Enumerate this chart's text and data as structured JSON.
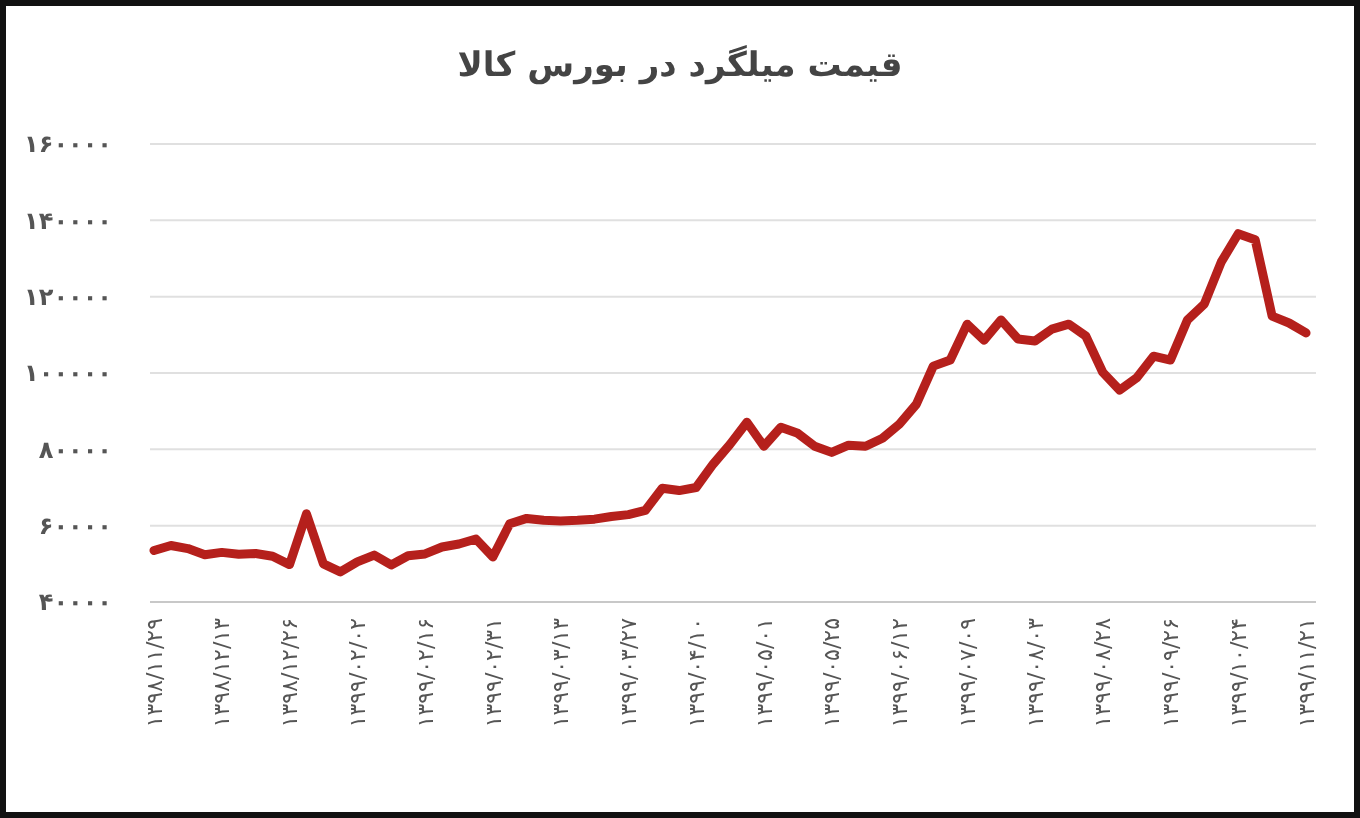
{
  "chart_data": {
    "type": "line",
    "title": "قیمت میلگرد در بورس کالا",
    "categories": [
      "۱۳۹۸/۱۱/۲۹",
      null,
      null,
      null,
      "۱۳۹۸/۱۲/۱۳",
      null,
      null,
      null,
      "۱۳۹۸/۱۲/۲۶",
      null,
      null,
      null,
      "۱۳۹۹/۰۲/۰۲",
      null,
      null,
      null,
      "۱۳۹۹/۰۲/۱۶",
      null,
      null,
      null,
      "۱۳۹۹/۰۲/۳۱",
      null,
      null,
      null,
      "۱۳۹۹/۰۳/۱۳",
      null,
      null,
      null,
      "۱۳۹۹/۰۳/۲۷",
      null,
      null,
      null,
      "۱۳۹۹/۰۴/۱۰",
      null,
      null,
      null,
      "۱۳۹۹/۰۵/۰۱",
      null,
      null,
      null,
      "۱۳۹۹/۰۵/۲۵",
      null,
      null,
      null,
      "۱۳۹۹/۰۶/۱۲",
      null,
      null,
      null,
      "۱۳۹۹/۰۷/۰۹",
      null,
      null,
      null,
      "۱۳۹۹/۰۸/۰۳",
      null,
      null,
      null,
      "۱۳۹۹/۰۸/۲۸",
      null,
      null,
      null,
      "۱۳۹۹/۰۹/۲۶",
      null,
      null,
      null,
      "۱۳۹۹/۱۰/۲۴",
      null,
      null,
      null,
      "۱۳۹۹/۱۱/۲۱"
    ],
    "values": [
      53500,
      54800,
      54000,
      52400,
      53000,
      52500,
      52700,
      52000,
      49800,
      63100,
      50000,
      47900,
      50500,
      52300,
      49700,
      52100,
      52600,
      54400,
      55200,
      56500,
      51800,
      60500,
      61900,
      61400,
      61200,
      61400,
      61700,
      62400,
      62900,
      64000,
      69800,
      69200,
      70000,
      76100,
      81300,
      87100,
      80800,
      85800,
      84200,
      80800,
      79200,
      81100,
      80800,
      82900,
      86600,
      91800,
      101800,
      103400,
      112800,
      108600,
      113900,
      108900,
      108400,
      111500,
      112800,
      109700,
      100200,
      95500,
      98700,
      104400,
      103400,
      113900,
      118100,
      129100,
      136500,
      134900,
      114900,
      113100,
      110500
    ],
    "color": "#b5201c",
    "ylim": [
      40000,
      160000
    ],
    "yticks": [
      {
        "value": 40000,
        "label": "۴۰۰۰۰"
      },
      {
        "value": 60000,
        "label": "۶۰۰۰۰"
      },
      {
        "value": 80000,
        "label": "۸۰۰۰۰"
      },
      {
        "value": 100000,
        "label": "۱۰۰۰۰۰"
      },
      {
        "value": 120000,
        "label": "۱۲۰۰۰۰"
      },
      {
        "value": 140000,
        "label": "۱۴۰۰۰۰"
      },
      {
        "value": 160000,
        "label": "۱۶۰۰۰۰"
      }
    ],
    "grid": "y"
  }
}
